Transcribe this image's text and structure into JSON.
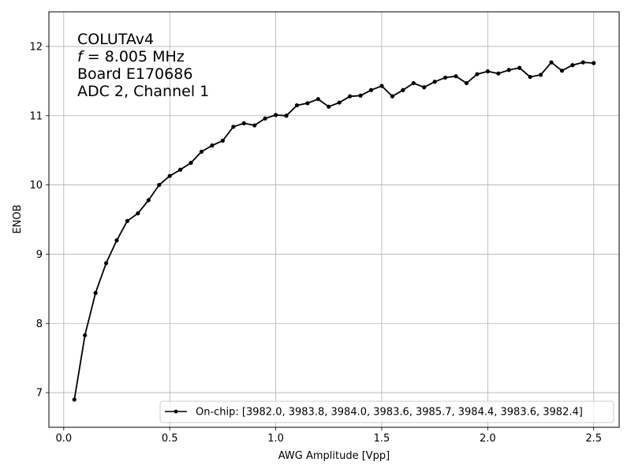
{
  "chart_data": {
    "type": "line",
    "title": "",
    "xlabel": "AWG Amplitude [Vpp]",
    "ylabel": "ENOB",
    "xlim": [
      -0.07,
      2.62
    ],
    "ylim": [
      6.5,
      12.5
    ],
    "xticks": [
      0.0,
      0.5,
      1.0,
      1.5,
      2.0,
      2.5
    ],
    "xtick_labels": [
      "0.0",
      "0.5",
      "1.0",
      "1.5",
      "2.0",
      "2.5"
    ],
    "yticks": [
      7,
      8,
      9,
      10,
      11,
      12
    ],
    "ytick_labels": [
      "7",
      "8",
      "9",
      "10",
      "11",
      "12"
    ],
    "grid": true,
    "legend_position": "lower-right",
    "annotation": {
      "lines": [
        "COLUTAv4",
        "f = 8.005 MHz",
        "Board E170686",
        "ADC 2, Channel 1"
      ],
      "italic_prefix": "f"
    },
    "series": [
      {
        "name": "On-chip: [3982.0, 3983.8, 3984.0, 3983.6, 3985.7, 3984.4, 3983.6, 3982.4]",
        "color": "#000000",
        "marker": "circle",
        "x": [
          0.05,
          0.1,
          0.15,
          0.2,
          0.25,
          0.3,
          0.35,
          0.4,
          0.45,
          0.5,
          0.55,
          0.6,
          0.65,
          0.7,
          0.75,
          0.8,
          0.85,
          0.9,
          0.95,
          1.0,
          1.05,
          1.1,
          1.15,
          1.2,
          1.25,
          1.3,
          1.35,
          1.4,
          1.45,
          1.5,
          1.55,
          1.6,
          1.65,
          1.7,
          1.75,
          1.8,
          1.85,
          1.9,
          1.95,
          2.0,
          2.05,
          2.1,
          2.15,
          2.2,
          2.25,
          2.3,
          2.35,
          2.4,
          2.45,
          2.5
        ],
        "y": [
          6.9,
          7.83,
          8.44,
          8.87,
          9.2,
          9.48,
          9.59,
          9.78,
          10.0,
          10.13,
          10.22,
          10.32,
          10.48,
          10.57,
          10.64,
          10.84,
          10.89,
          10.86,
          10.96,
          11.01,
          11.0,
          11.15,
          11.18,
          11.24,
          11.13,
          11.19,
          11.28,
          11.29,
          11.37,
          11.43,
          11.28,
          11.37,
          11.47,
          11.41,
          11.49,
          11.55,
          11.57,
          11.47,
          11.6,
          11.64,
          11.61,
          11.66,
          11.69,
          11.56,
          11.59,
          11.77,
          11.65,
          11.73,
          11.77,
          11.76
        ]
      }
    ]
  }
}
